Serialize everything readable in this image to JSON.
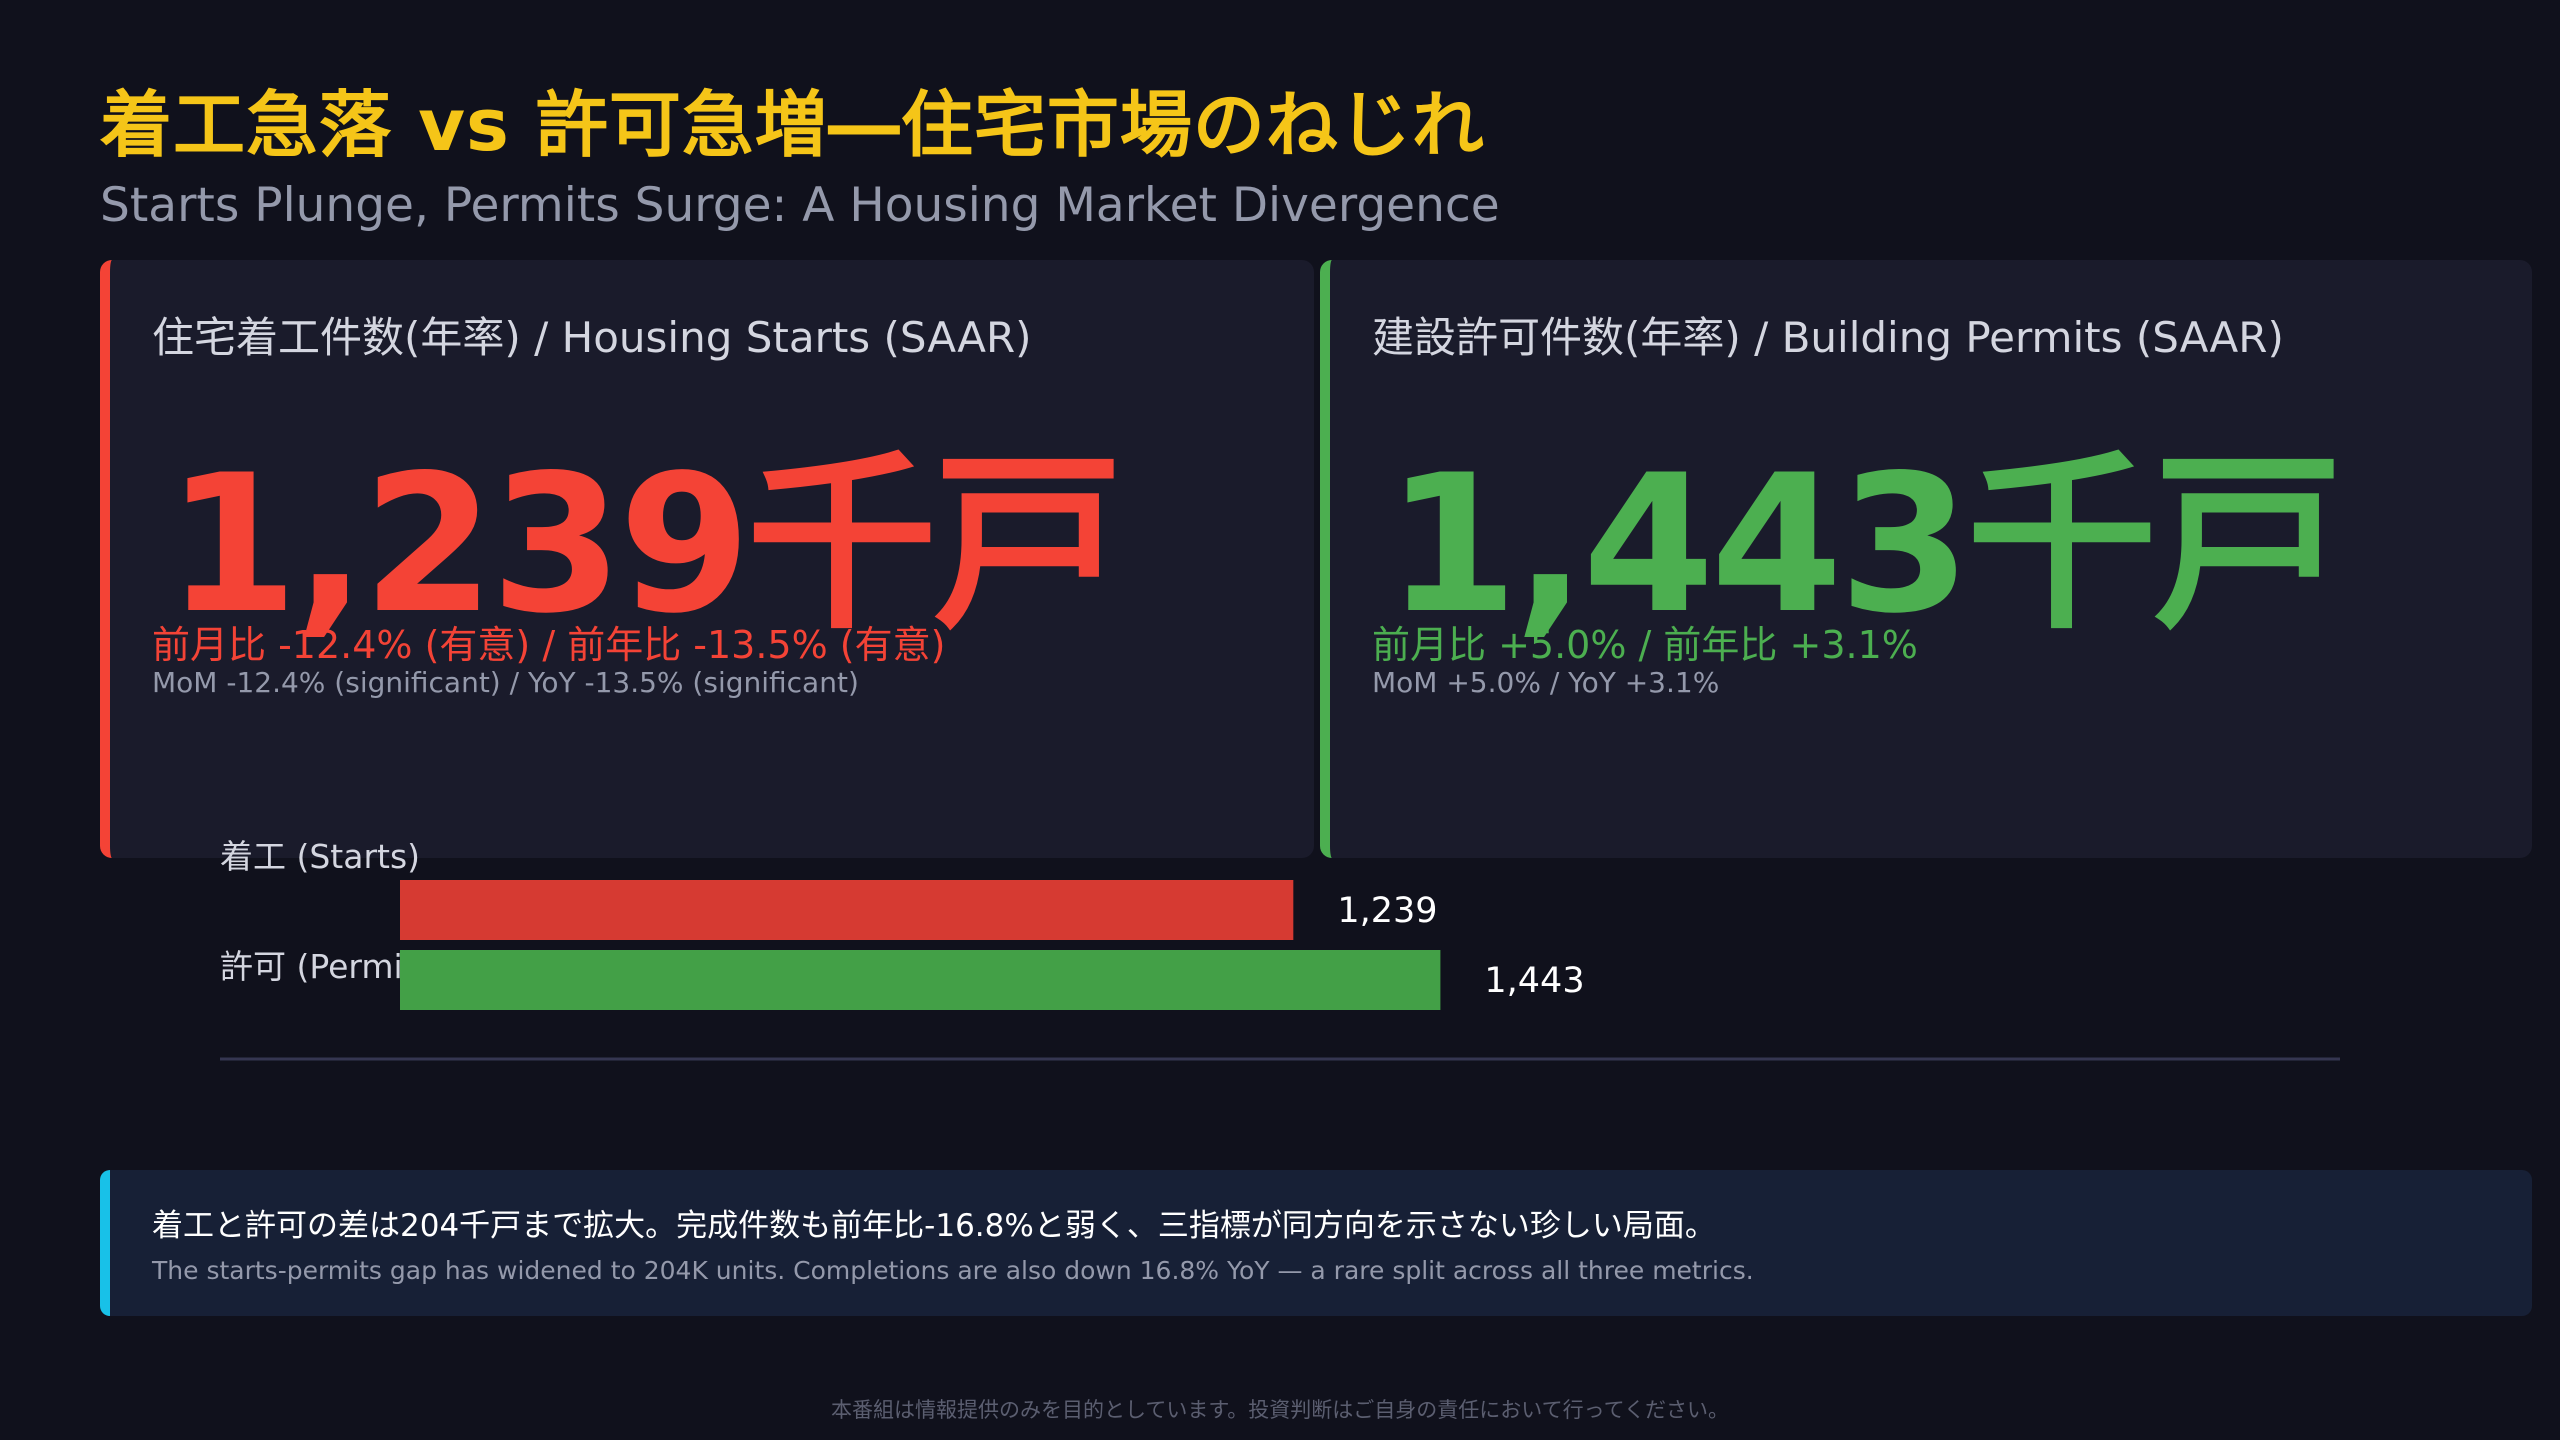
{
  "title": "着工急落 vs 許可急増―住宅市場のねじれ",
  "subtitle": "Starts Plunge, Permits Surge: A Housing Market Divergence",
  "cards": [
    {
      "label": "住宅着工件数(年率) / Housing Starts (SAAR)",
      "value": "1,239千戸",
      "change": "前月比 -12.4% (有意) / 前年比 -13.5% (有意)",
      "change_en": "MoM -12.4% (significant) / YoY -13.5% (significant)",
      "color": "#f44336"
    },
    {
      "label": "建設許可件数(年率) / Building Permits (SAAR)",
      "value": "1,443千戸",
      "change": "前月比 +5.0% / 前年比 +3.1%",
      "change_en": "MoM +5.0% / YoY +3.1%",
      "color": "#4caf50"
    }
  ],
  "chart_data": {
    "type": "bar",
    "orientation": "horizontal",
    "categories": [
      "着工 (Starts)",
      "許可 (Permits)"
    ],
    "values": [
      1239,
      1443
    ],
    "value_labels": [
      "1,239",
      "1,443"
    ],
    "colors": [
      "#d63a32",
      "#43a047"
    ],
    "xlim": [
      0,
      2000
    ],
    "grid": false
  },
  "note": {
    "jp": "着工と許可の差は204千戸まで拡大。完成件数も前年比-16.8%と弱く、三指標が同方向を示さない珍しい局面。",
    "en": "The starts-permits gap has widened to 204K units. Completions are also down 16.8% YoY — a rare split across all three metrics."
  },
  "disclaimer": "本番組は情報提供のみを目的としています。投資判断はご自身の責任において行ってください。"
}
